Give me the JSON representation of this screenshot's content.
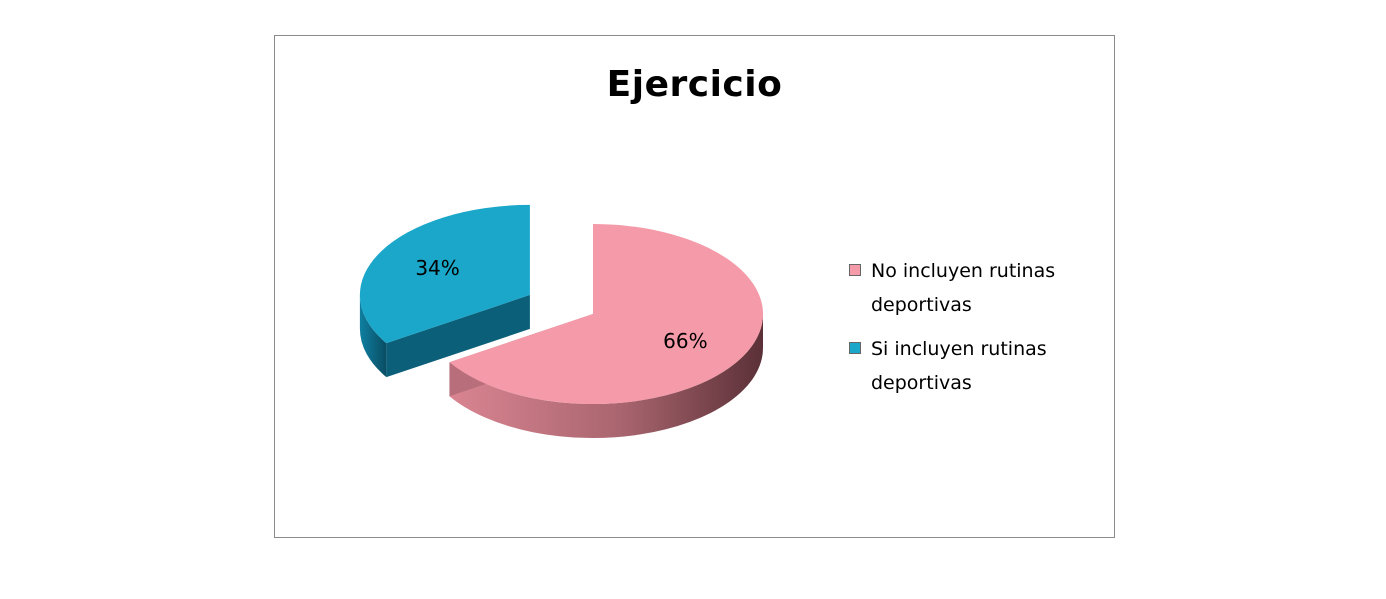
{
  "chart_data": {
    "type": "pie",
    "title": "Ejercicio",
    "categories": [
      "No incluyen rutinas deportivas",
      "Si incluyen rutinas deportivas"
    ],
    "values": [
      66,
      34
    ],
    "value_labels": [
      "66%",
      "34%"
    ],
    "colors": [
      "#f49aa8",
      "#1aa7c9"
    ],
    "legend_position": "right",
    "style": "3d-exploded"
  }
}
